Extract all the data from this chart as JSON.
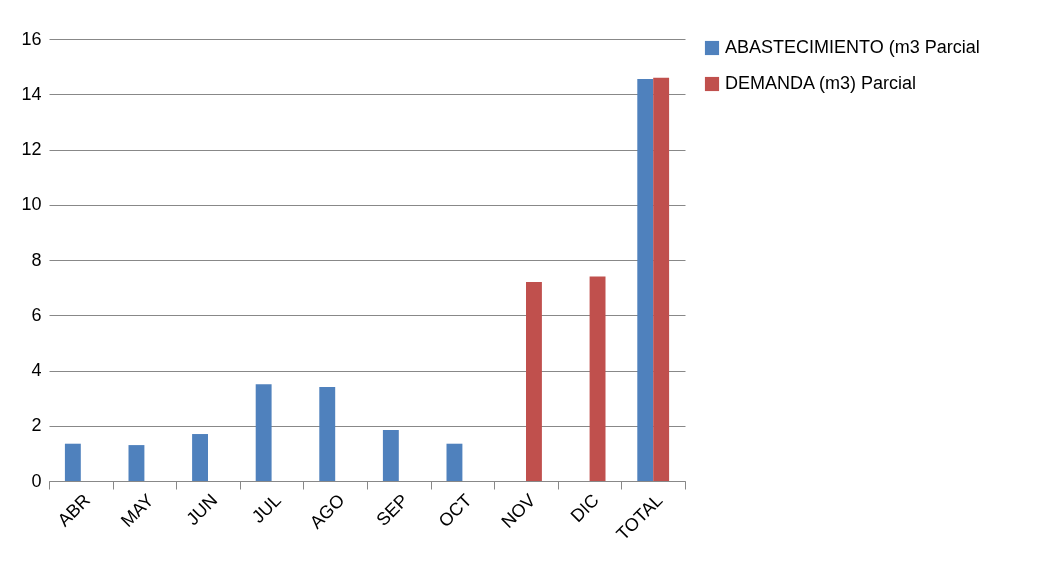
{
  "chart_data": {
    "type": "bar",
    "categories": [
      "ABR",
      "MAY",
      "JUN",
      "JUL",
      "AGO",
      "SEP",
      "OCT",
      "NOV",
      "DIC",
      "TOTAL"
    ],
    "series": [
      {
        "name": "ABASTECIMIENTO (m3 Parcial",
        "color": "#4f81bd",
        "values": [
          1.35,
          1.3,
          1.7,
          3.5,
          3.4,
          1.85,
          1.35,
          null,
          null,
          14.55
        ]
      },
      {
        "name": "DEMANDA  (m3) Parcial",
        "color": "#c0504d",
        "values": [
          null,
          null,
          null,
          null,
          null,
          null,
          null,
          7.2,
          7.4,
          14.6
        ]
      }
    ],
    "ylim": [
      0,
      16
    ],
    "yticks": [
      0,
      2,
      4,
      6,
      8,
      10,
      12,
      14,
      16
    ],
    "grid": "y",
    "legend": "right"
  }
}
